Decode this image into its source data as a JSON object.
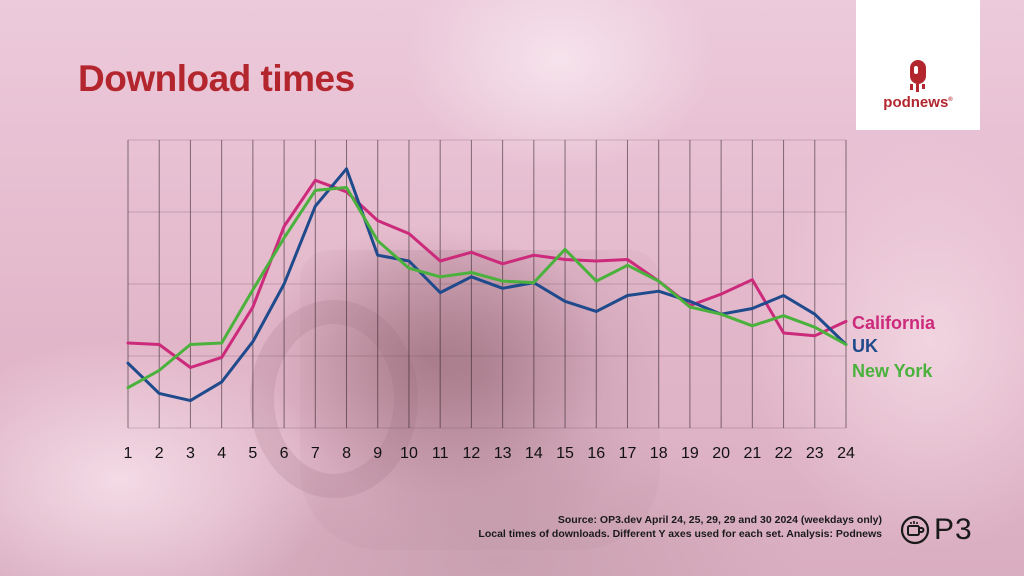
{
  "header": {
    "title": "Download times"
  },
  "brand": {
    "name": "podnews",
    "mark": "®",
    "accent": "#b3262d"
  },
  "footer": {
    "source_line1": "Source: OP3.dev April 24, 25, 29, 29 and 30 2024 (weekdays only)",
    "source_line2": "Local times of downloads. Different Y axes used for each set. Analysis: Podnews",
    "p3_label": "P3",
    "p3_icon": "op3-coffee-icon"
  },
  "chart_data": {
    "type": "line",
    "title": "Download times",
    "x": [
      1,
      2,
      3,
      4,
      5,
      6,
      7,
      8,
      9,
      10,
      11,
      12,
      13,
      14,
      15,
      16,
      17,
      18,
      19,
      20,
      21,
      22,
      23,
      24
    ],
    "xlabel": "",
    "ylabel": "",
    "y_axis": "none (different Y axes used for each set)",
    "ylim": [
      0,
      100
    ],
    "grid": "vertical lines at each x plus horizontal lines",
    "legend": "right, labels at line ends",
    "series": [
      {
        "name": "California",
        "color": "#cc2a7a",
        "values": [
          29.5,
          29,
          21,
          24.5,
          42,
          70,
          86,
          82,
          72,
          67.5,
          58,
          61,
          57,
          60,
          58.5,
          58,
          58.5,
          51,
          42.5,
          46.5,
          51.5,
          33,
          32,
          37
        ]
      },
      {
        "name": "UK",
        "color": "#1f4a8c",
        "values": [
          22.5,
          12,
          9.5,
          16,
          30,
          50,
          77,
          90,
          60,
          58,
          47,
          52.5,
          48.5,
          50.5,
          44,
          40.5,
          46,
          47.5,
          44,
          39.5,
          41.5,
          46,
          39.5,
          29
        ]
      },
      {
        "name": "New York",
        "color": "#4ab23c",
        "values": [
          14,
          20,
          29,
          29.5,
          48,
          66,
          82.5,
          83.5,
          65,
          55.5,
          52.5,
          54,
          51,
          50.5,
          62,
          51,
          56.5,
          51,
          42,
          39.5,
          35.5,
          39,
          35,
          29
        ]
      }
    ]
  }
}
